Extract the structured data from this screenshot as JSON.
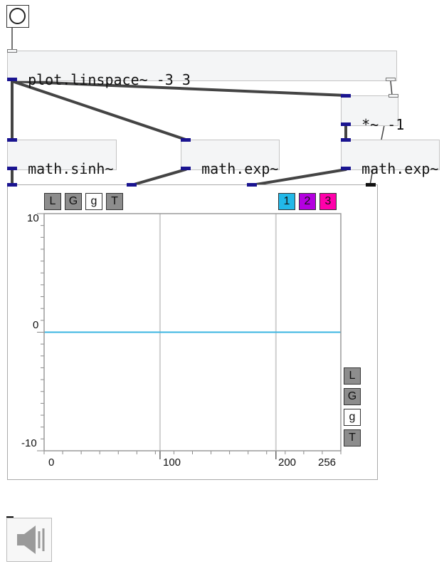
{
  "objects": {
    "linspace": "plot.linspace~ -3 3",
    "mul": "*~ -1",
    "sinh": "math.sinh~",
    "exp1": "math.exp~",
    "exp2": "math.exp~"
  },
  "plot": {
    "top_buttons": [
      "L",
      "G",
      "g",
      "T"
    ],
    "channel_buttons": [
      "1",
      "2",
      "3"
    ],
    "side_buttons": [
      "L",
      "G",
      "g",
      "T"
    ],
    "y_ticks": [
      "10",
      "0",
      "-10"
    ],
    "x_ticks": [
      "0",
      "100",
      "200",
      "256"
    ],
    "colors": {
      "ch1": "#22b8e8",
      "ch2": "#b400e0",
      "ch3": "#ff00aa",
      "line": "#3bb6e2"
    }
  },
  "chart_data": {
    "type": "line",
    "x": [
      0,
      256
    ],
    "series": [
      {
        "values": [
          0,
          0
        ]
      }
    ],
    "xlim": [
      0,
      256
    ],
    "ylim": [
      -10,
      10
    ],
    "grid": true
  }
}
